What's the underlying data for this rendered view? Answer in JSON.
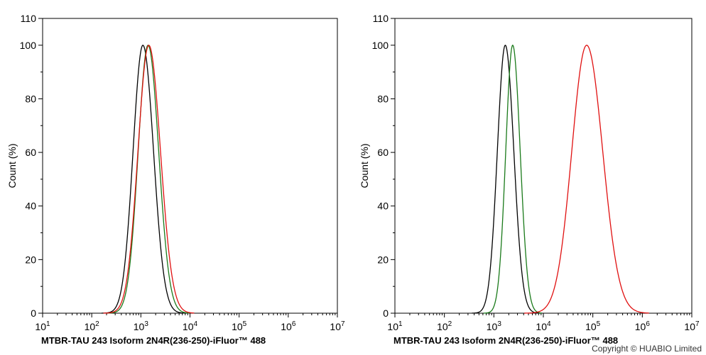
{
  "chart_data": [
    {
      "type": "line",
      "title": "",
      "xlabel": "MTBR-TAU 243 Isoform 2N4R(236-250)-iFluor™ 488",
      "ylabel": "Count  (%)",
      "xscale": "log",
      "xlim": [
        10,
        10000000
      ],
      "ylim": [
        0,
        110
      ],
      "x_tick_exponents": [
        "1",
        "2",
        "3",
        "4",
        "5",
        "6",
        "7"
      ],
      "y_ticks": [
        "0",
        "20",
        "40",
        "60",
        "80",
        "100",
        "110"
      ],
      "grid": false,
      "legend": "none",
      "series": [
        {
          "color": "#000000",
          "peak": 1100,
          "width": 0.2,
          "x": [
            100,
            300,
            600,
            1100,
            2000,
            5000,
            10000
          ],
          "y": [
            0,
            2,
            30,
            100,
            30,
            1,
            0
          ]
        },
        {
          "color": "#1a7a1a",
          "peak": 1400,
          "width": 0.2,
          "x": [
            150,
            400,
            800,
            1400,
            2500,
            6000,
            12000
          ],
          "y": [
            0,
            2,
            28,
            100,
            28,
            1,
            0
          ]
        },
        {
          "color": "#e01010",
          "peak": 1450,
          "width": 0.22,
          "x": [
            150,
            400,
            800,
            1450,
            2800,
            7000,
            14000
          ],
          "y": [
            0,
            2,
            27,
            100,
            30,
            2,
            0
          ]
        }
      ]
    },
    {
      "type": "line",
      "title": "",
      "xlabel": "MTBR-TAU 243 Isoform 2N4R(236-250)-iFluor™ 488",
      "ylabel": "Count  (%)",
      "xscale": "log",
      "xlim": [
        10,
        10000000
      ],
      "ylim": [
        0,
        110
      ],
      "x_tick_exponents": [
        "1",
        "2",
        "3",
        "4",
        "5",
        "6",
        "7"
      ],
      "y_ticks": [
        "0",
        "20",
        "40",
        "60",
        "80",
        "100",
        "110"
      ],
      "grid": false,
      "legend": "none",
      "series": [
        {
          "color": "#000000",
          "peak": 1700,
          "width": 0.16,
          "x": [
            300,
            800,
            1700,
            3500,
            8000
          ],
          "y": [
            0,
            20,
            100,
            20,
            0
          ]
        },
        {
          "color": "#1a7a1a",
          "peak": 2400,
          "width": 0.14,
          "x": [
            600,
            1300,
            2400,
            4500,
            9000
          ],
          "y": [
            0,
            20,
            100,
            20,
            0
          ]
        },
        {
          "color": "#e01010",
          "peak": 75000,
          "width": 0.3,
          "x": [
            8000,
            20000,
            75000,
            200000,
            500000
          ],
          "y": [
            0,
            15,
            100,
            15,
            0
          ]
        }
      ]
    }
  ],
  "footer": {
    "copyright": "Copyright © HUABIO Limited"
  }
}
